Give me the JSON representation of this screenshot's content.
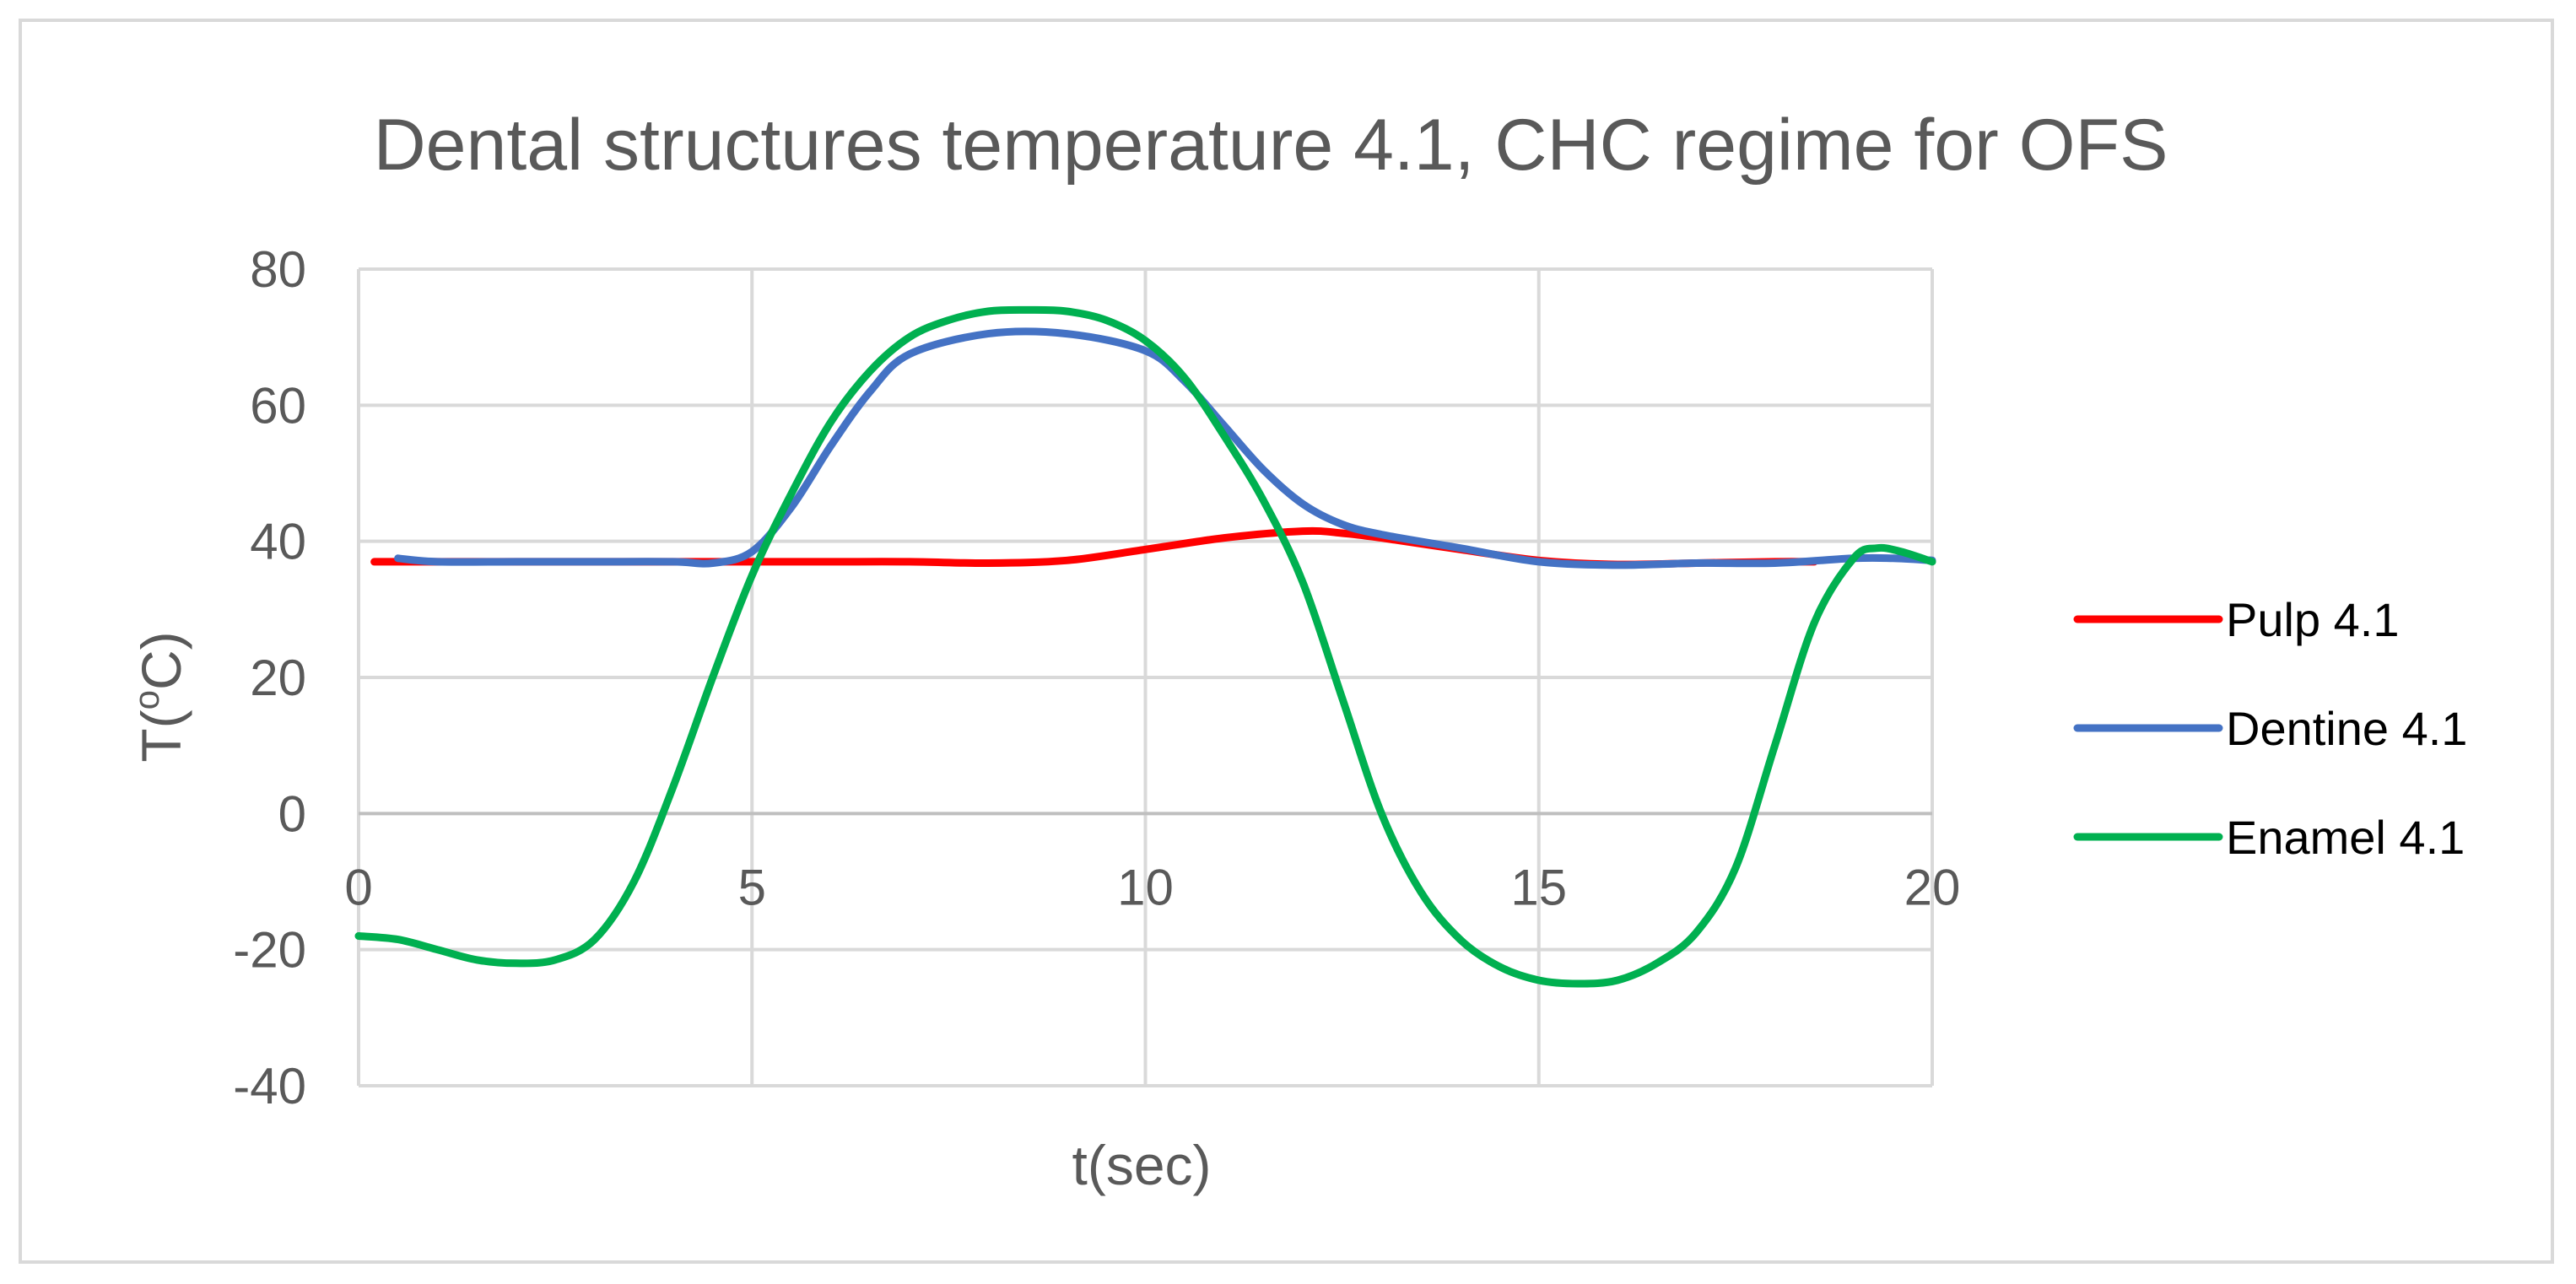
{
  "chart_data": {
    "type": "line",
    "title": "Dental structures temperature 4.1, CHC regime for OFS",
    "xlabel": "t(sec)",
    "ylabel_main": "T(",
    "ylabel_sup": "o",
    "ylabel_tail": "C)",
    "xlim": [
      0,
      20
    ],
    "ylim": [
      -40,
      80
    ],
    "x_ticks": [
      0,
      5,
      10,
      15,
      20
    ],
    "y_ticks": [
      -40,
      -20,
      0,
      20,
      40,
      60,
      80
    ],
    "grid": true,
    "legend_position": "right",
    "series": [
      {
        "name": "Pulp 4.1",
        "color": "#ff0000",
        "x": [
          0.2,
          1,
          2,
          3,
          4,
          5,
          6,
          7,
          8,
          9,
          10,
          11,
          12,
          12.5,
          13,
          14,
          15,
          16,
          17,
          18,
          18.5
        ],
        "y": [
          37,
          37,
          37,
          37,
          37,
          37,
          37,
          37,
          36.8,
          37.2,
          38.8,
          40.5,
          41.5,
          41.2,
          40.5,
          38.8,
          37.2,
          36.6,
          36.8,
          37,
          37
        ]
      },
      {
        "name": "Dentine 4.1",
        "color": "#4472c4",
        "x": [
          0.5,
          1,
          2,
          3,
          4,
          4.5,
          5,
          5.5,
          6,
          6.5,
          7,
          8,
          9,
          10,
          10.5,
          11,
          11.5,
          12,
          12.5,
          13,
          14,
          15,
          16,
          17,
          18,
          19,
          19.5,
          20
        ],
        "y": [
          37.5,
          37,
          37,
          37,
          37,
          36.8,
          38.5,
          45,
          54,
          62,
          67.5,
          70.5,
          70.5,
          68,
          63.5,
          57,
          50.5,
          45.5,
          42.5,
          41,
          39,
          37,
          36.5,
          36.8,
          36.8,
          37.5,
          37.5,
          37.2
        ]
      },
      {
        "name": "Enamel 4.1",
        "color": "#00b050",
        "x": [
          0,
          0.5,
          1,
          1.5,
          2,
          2.5,
          3,
          3.5,
          4,
          4.5,
          5,
          5.5,
          6,
          6.5,
          7,
          7.5,
          8,
          8.5,
          9,
          9.5,
          10,
          10.5,
          11,
          11.5,
          12,
          12.5,
          13,
          13.5,
          14,
          14.5,
          15,
          15.5,
          16,
          16.5,
          17,
          17.5,
          18,
          18.5,
          19,
          19.3,
          19.6,
          20
        ],
        "y": [
          -18,
          -18.5,
          -20,
          -21.5,
          -22,
          -21.5,
          -18.5,
          -10,
          4,
          20,
          35,
          47,
          57.5,
          65,
          70,
          72.5,
          73.8,
          74,
          73.8,
          72.5,
          69.5,
          64,
          55.5,
          46,
          34,
          17,
          0,
          -11.5,
          -18.5,
          -22.5,
          -24.5,
          -25,
          -24.5,
          -22,
          -17.5,
          -8,
          10,
          28,
          37.5,
          39,
          38.5,
          37
        ]
      }
    ]
  }
}
